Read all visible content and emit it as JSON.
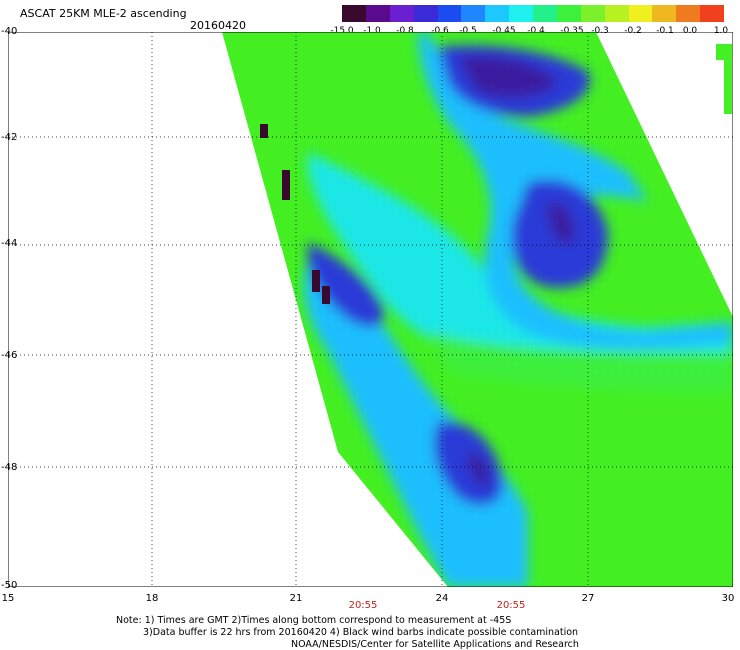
{
  "title": "ASCAT 25KM MLE-2 ascending",
  "date": "20160420",
  "colorbar": {
    "labels": [
      "-15.0",
      "-1.0",
      "-0.8",
      "-0.6",
      "-0.5",
      "-0.45",
      "-0.4",
      "-0.35",
      "-0.3",
      "-0.2",
      "-0.1",
      "0.0",
      "1.0"
    ],
    "colors": [
      "#3a0a2e",
      "#5a0a8c",
      "#6a1fd0",
      "#3a2ad8",
      "#1a4cf0",
      "#1f86ff",
      "#1cc8ff",
      "#1ef0f0",
      "#22f08a",
      "#3cf03c",
      "#7cf02a",
      "#b8f020",
      "#f0f020",
      "#f0b820",
      "#f07a1e",
      "#f0401e"
    ]
  },
  "map": {
    "lat_labels": [
      "-40",
      "-42",
      "-44",
      "-46",
      "-48",
      "-50"
    ],
    "lon_labels": [
      "15",
      "18",
      "21",
      "24",
      "27",
      "30"
    ],
    "time_labels": [
      "20:55",
      "20:55"
    ]
  },
  "notes": [
    "Note: 1) Times are GMT 2)Times along bottom correspond to measurement at -45S",
    "3)Data buffer is 22 hrs from 20160420 4) Black wind barbs indicate possible contamination",
    "NOAA/NESDIS/Center for Satellite Applications and Research"
  ]
}
